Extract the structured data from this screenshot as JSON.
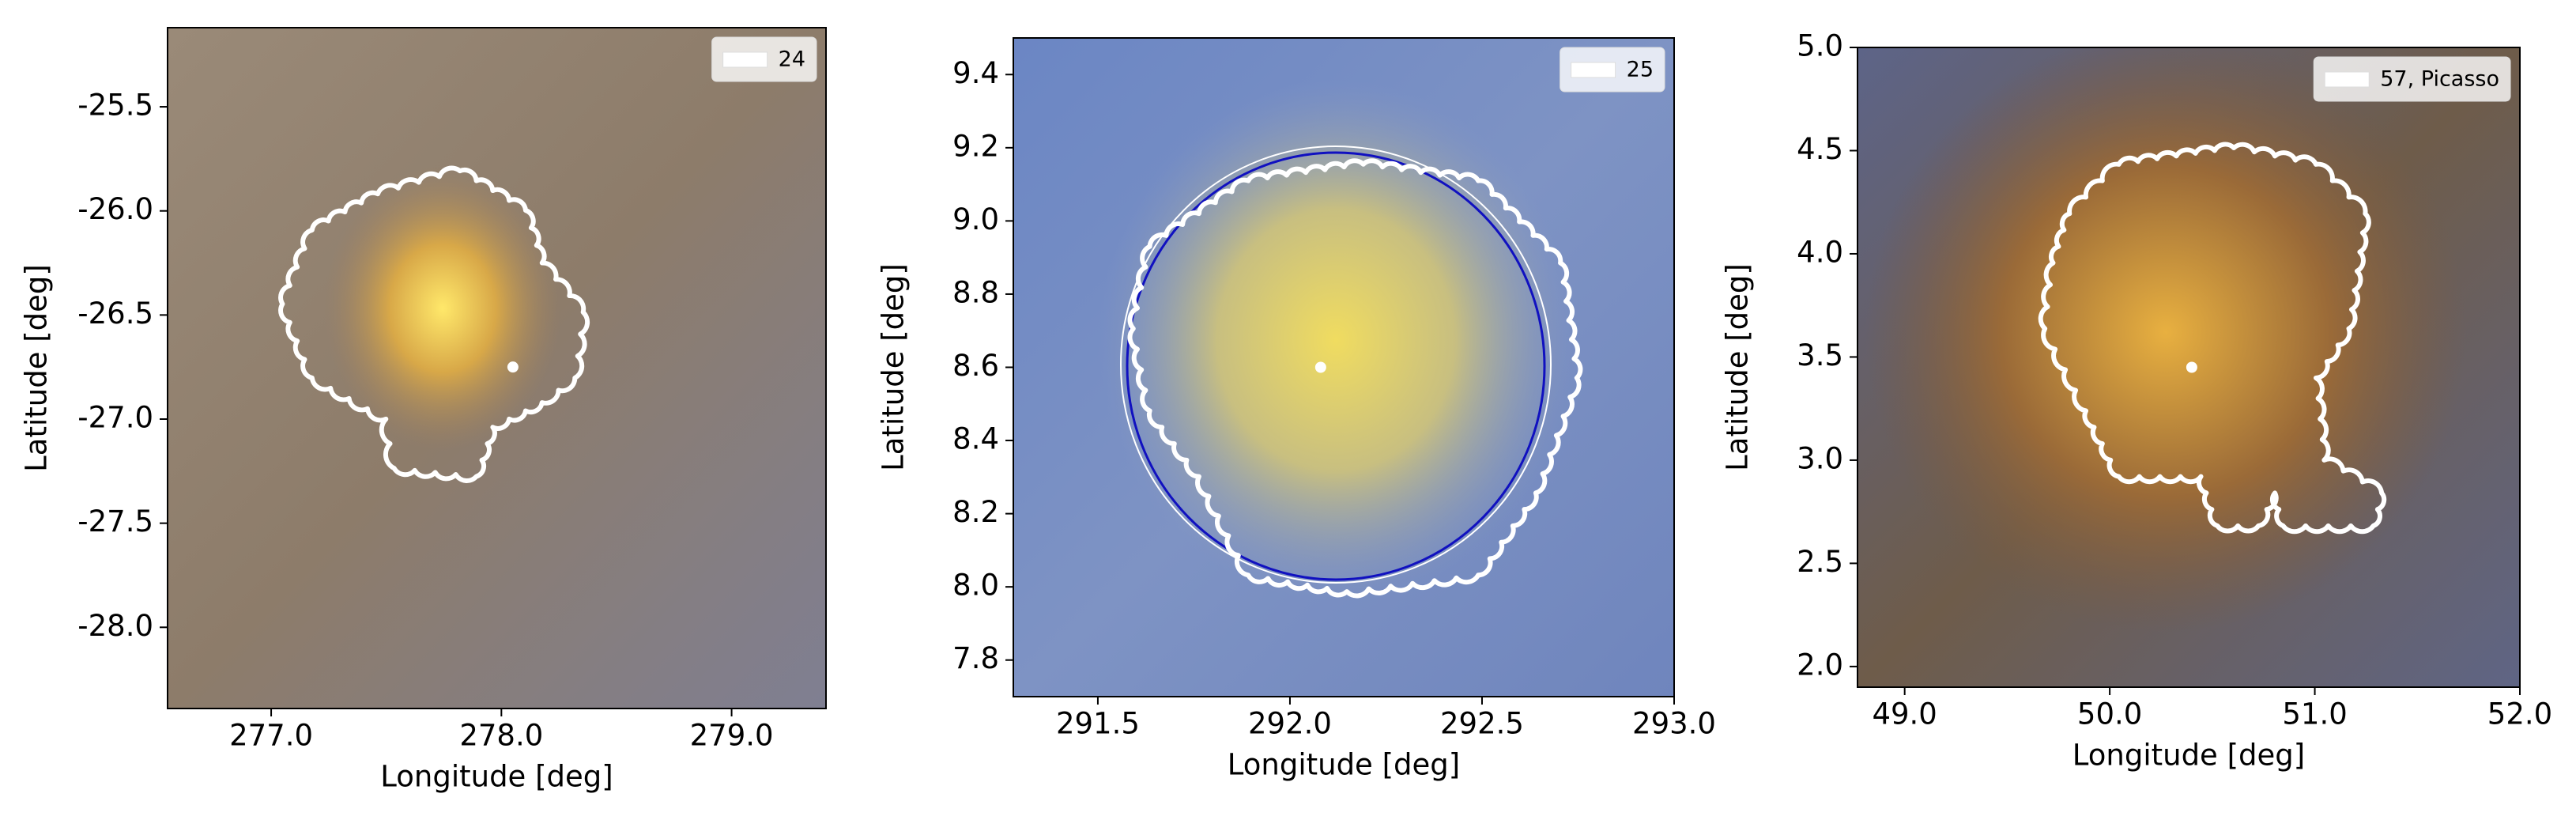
{
  "chart_data": [
    {
      "type": "image",
      "xlabel": "Longitude [deg]",
      "ylabel": "Latitude [deg]",
      "xlim": [
        276.55,
        279.41
      ],
      "ylim": [
        -28.39,
        -25.12
      ],
      "xticks": [
        {
          "value": 277,
          "label": "277.0"
        },
        {
          "value": 278,
          "label": "278.0"
        },
        {
          "value": 279,
          "label": "279.0"
        }
      ],
      "yticks": [
        -25.5,
        {
          "value": -26,
          "label": "-26.0"
        },
        -26.5,
        {
          "value": -27,
          "label": "-27.0"
        },
        -27.5,
        {
          "value": -28,
          "label": "-28.0"
        }
      ],
      "series": [
        {
          "name": "24",
          "color": "#ffffff",
          "x": [
            278.05
          ],
          "y": [
            -26.75
          ]
        }
      ]
    },
    {
      "type": "image",
      "xlabel": "Longitude [deg]",
      "ylabel": "Latitude [deg]",
      "xlim": [
        291.28,
        293.0
      ],
      "ylim": [
        7.7,
        9.5
      ],
      "xticks": [
        291.5,
        {
          "value": 292,
          "label": "292.0"
        },
        292.5,
        {
          "value": 293,
          "label": "293.0"
        }
      ],
      "yticks": [
        7.8,
        {
          "value": 8,
          "label": "8.0"
        },
        8.2,
        8.4,
        8.6,
        8.8,
        {
          "value": 9,
          "label": "9.0"
        },
        9.2,
        9.4
      ],
      "series": [
        {
          "name": "25",
          "color": "#ffffff",
          "x": [
            292.08
          ],
          "y": [
            8.6
          ]
        }
      ]
    },
    {
      "type": "image",
      "xlabel": "Longitude [deg]",
      "ylabel": "Latitude [deg]",
      "xlim": [
        48.77,
        52.0
      ],
      "ylim": [
        1.9,
        5.0
      ],
      "xticks": [
        {
          "value": 49,
          "label": "49.0"
        },
        {
          "value": 50,
          "label": "50.0"
        },
        {
          "value": 51,
          "label": "51.0"
        },
        {
          "value": 52,
          "label": "52.0"
        }
      ],
      "yticks": [
        {
          "value": 2,
          "label": "2.0"
        },
        2.5,
        {
          "value": 3,
          "label": "3.0"
        },
        3.5,
        {
          "value": 4,
          "label": "4.0"
        },
        4.5,
        {
          "value": 5,
          "label": "5.0"
        }
      ],
      "series": [
        {
          "name": "57, Picasso",
          "color": "#ffffff",
          "x": [
            50.4
          ],
          "y": [
            3.45
          ]
        }
      ]
    }
  ]
}
